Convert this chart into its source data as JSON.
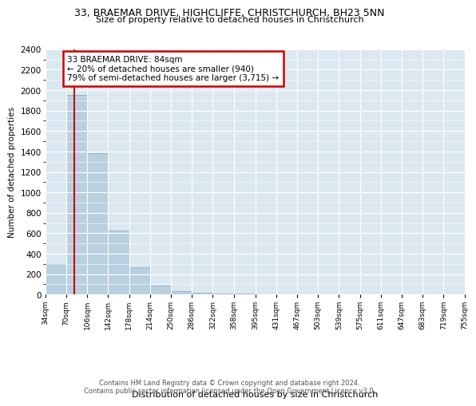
{
  "title": "33, BRAEMAR DRIVE, HIGHCLIFFE, CHRISTCHURCH, BH23 5NN",
  "subtitle": "Size of property relative to detached houses in Christchurch",
  "xlabel": "Distribution of detached houses by size in Christchurch",
  "ylabel": "Number of detached properties",
  "bin_edges": [
    34,
    70,
    106,
    142,
    178,
    214,
    250,
    286,
    322,
    358,
    395,
    431,
    467,
    503,
    539,
    575,
    611,
    647,
    683,
    719,
    755
  ],
  "bar_heights": [
    300,
    1950,
    1380,
    630,
    270,
    90,
    30,
    15,
    10,
    8,
    5,
    4,
    3,
    2,
    1,
    1,
    1,
    1,
    1,
    1
  ],
  "bar_color": "#b8d0e0",
  "bar_edge_color": "#7aaabf",
  "vline_color": "#cc0000",
  "vline_x": 84,
  "annotation_text": "33 BRAEMAR DRIVE: 84sqm\n← 20% of detached houses are smaller (940)\n79% of semi-detached houses are larger (3,715) →",
  "annotation_box_color": "#cc0000",
  "ylim": [
    0,
    2400
  ],
  "yticks": [
    0,
    200,
    400,
    600,
    800,
    1000,
    1200,
    1400,
    1600,
    1800,
    2000,
    2200,
    2400
  ],
  "tick_labels": [
    "34sqm",
    "70sqm",
    "106sqm",
    "142sqm",
    "178sqm",
    "214sqm",
    "250sqm",
    "286sqm",
    "322sqm",
    "358sqm",
    "395sqm",
    "431sqm",
    "467sqm",
    "503sqm",
    "539sqm",
    "575sqm",
    "611sqm",
    "647sqm",
    "683sqm",
    "719sqm",
    "755sqm"
  ],
  "bg_color": "#dce8f0",
  "grid_color": "#ffffff",
  "fig_bg_color": "#ffffff",
  "footer_line1": "Contains HM Land Registry data © Crown copyright and database right 2024.",
  "footer_line2": "Contains public sector information licensed under the Open Government Licence v3.0."
}
